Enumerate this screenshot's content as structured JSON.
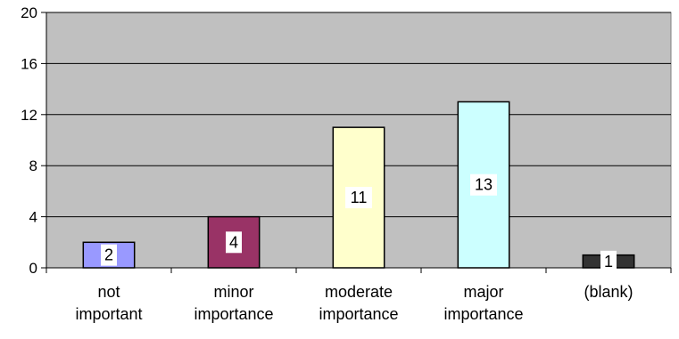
{
  "chart_data": {
    "type": "bar",
    "title": "",
    "xlabel": "",
    "ylabel": "",
    "ylim": [
      0,
      20
    ],
    "yticks": [
      0,
      4,
      8,
      12,
      16,
      20
    ],
    "grid": true,
    "legend": "none",
    "categories": [
      [
        "not",
        "important"
      ],
      [
        "minor",
        "importance"
      ],
      [
        "moderate",
        "importance"
      ],
      [
        "major",
        "importance"
      ],
      [
        "(blank)"
      ]
    ],
    "values": [
      2,
      4,
      11,
      13,
      1
    ],
    "bar_colors": [
      "#9999ff",
      "#993366",
      "#ffffcc",
      "#ccffff",
      "#333333"
    ],
    "data_labels": [
      "2",
      "4",
      "11",
      "13",
      "1"
    ],
    "plot_background": "#c0c0c0"
  }
}
